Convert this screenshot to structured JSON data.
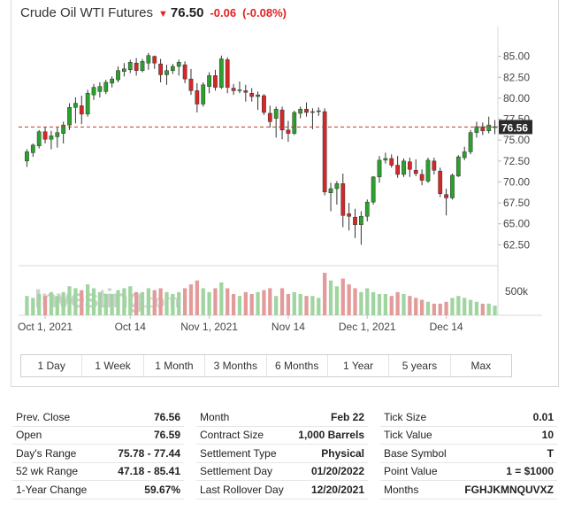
{
  "header": {
    "name": "Crude Oil WTI Futures",
    "price": "76.50",
    "change": "-0.06",
    "change_pct": "(-0.08%)"
  },
  "colors": {
    "up": "#2ca02c",
    "down": "#d62728",
    "vol_up": "#9fd59f",
    "vol_down": "#e39a9a",
    "current_line": "#c0392b"
  },
  "watermark": {
    "brand": "Investing",
    "suffix": ".com"
  },
  "chart_data": {
    "type": "candlestick",
    "title": "",
    "ylim": [
      60,
      87.5
    ],
    "y_ticks": [
      "85.00",
      "82.50",
      "80.00",
      "77.50",
      "75.00",
      "72.50",
      "70.00",
      "67.50",
      "65.00",
      "62.50"
    ],
    "x_ticks": [
      "Oct 1, 2021",
      "Oct 14",
      "Nov 1, 2021",
      "Nov 14",
      "Dec 1, 2021",
      "Dec 14"
    ],
    "current_label": "76.56",
    "current_value": 76.56,
    "volume_label": "500k",
    "candles": [
      [
        72.5,
        73.9,
        71.8,
        73.6
      ],
      [
        73.5,
        74.6,
        73.0,
        74.4
      ],
      [
        74.3,
        76.2,
        74.0,
        76.0
      ],
      [
        76.0,
        76.6,
        74.6,
        75.1
      ],
      [
        75.1,
        76.1,
        73.9,
        75.5
      ],
      [
        75.4,
        76.5,
        74.1,
        75.9
      ],
      [
        75.8,
        77.2,
        74.6,
        76.8
      ],
      [
        76.8,
        79.4,
        76.2,
        78.9
      ],
      [
        78.9,
        80.1,
        77.0,
        79.4
      ],
      [
        79.1,
        80.3,
        76.9,
        78.1
      ],
      [
        78.1,
        81.0,
        77.8,
        80.6
      ],
      [
        80.4,
        81.7,
        79.8,
        81.3
      ],
      [
        80.8,
        81.9,
        80.1,
        81.4
      ],
      [
        80.8,
        82.2,
        80.5,
        81.9
      ],
      [
        81.8,
        82.6,
        81.3,
        82.3
      ],
      [
        82.2,
        83.8,
        81.9,
        83.3
      ],
      [
        83.2,
        84.2,
        82.6,
        83.5
      ],
      [
        83.4,
        84.6,
        83.0,
        84.3
      ],
      [
        84.2,
        84.8,
        82.7,
        83.3
      ],
      [
        83.3,
        84.7,
        83.1,
        84.4
      ],
      [
        84.2,
        85.4,
        83.4,
        85.1
      ],
      [
        85.0,
        85.1,
        83.5,
        84.2
      ],
      [
        84.1,
        84.7,
        81.9,
        82.8
      ],
      [
        82.8,
        84.0,
        81.6,
        83.3
      ],
      [
        83.3,
        84.1,
        82.9,
        83.8
      ],
      [
        83.8,
        84.6,
        82.7,
        84.3
      ],
      [
        84.0,
        84.4,
        81.8,
        82.3
      ],
      [
        82.3,
        83.5,
        80.4,
        80.9
      ],
      [
        80.9,
        81.8,
        78.3,
        79.3
      ],
      [
        79.3,
        81.9,
        79.0,
        81.6
      ],
      [
        81.4,
        83.1,
        80.6,
        82.7
      ],
      [
        82.7,
        83.4,
        80.9,
        81.3
      ],
      [
        81.3,
        85.1,
        81.1,
        84.7
      ],
      [
        84.6,
        84.9,
        80.6,
        81.3
      ],
      [
        81.2,
        81.7,
        80.4,
        80.9
      ],
      [
        80.9,
        82.0,
        80.6,
        81.0
      ],
      [
        80.9,
        81.6,
        79.6,
        80.7
      ],
      [
        80.6,
        81.2,
        79.6,
        80.2
      ],
      [
        80.2,
        80.8,
        78.6,
        80.4
      ],
      [
        80.3,
        80.5,
        78.0,
        78.3
      ],
      [
        78.2,
        79.1,
        76.5,
        77.2
      ],
      [
        77.6,
        79.0,
        75.3,
        78.7
      ],
      [
        78.6,
        79.0,
        75.1,
        76.2
      ],
      [
        76.2,
        77.3,
        74.8,
        75.8
      ],
      [
        75.8,
        78.5,
        75.6,
        78.3
      ],
      [
        78.2,
        79.0,
        77.6,
        78.7
      ],
      [
        78.7,
        79.5,
        77.8,
        78.3
      ],
      [
        78.3,
        78.8,
        76.3,
        78.4
      ],
      [
        78.4,
        78.9,
        77.9,
        78.5
      ],
      [
        78.4,
        78.8,
        68.4,
        68.8
      ],
      [
        68.7,
        69.9,
        66.5,
        69.2
      ],
      [
        69.2,
        70.1,
        67.3,
        69.8
      ],
      [
        69.8,
        71.0,
        64.6,
        66.0
      ],
      [
        66.2,
        67.5,
        64.2,
        65.9
      ],
      [
        65.8,
        66.8,
        63.3,
        64.9
      ],
      [
        64.9,
        66.5,
        62.5,
        65.9
      ],
      [
        65.9,
        67.9,
        65.3,
        67.6
      ],
      [
        67.6,
        70.7,
        67.3,
        70.6
      ],
      [
        70.6,
        73.1,
        69.9,
        72.6
      ],
      [
        72.6,
        73.5,
        72.2,
        72.8
      ],
      [
        72.8,
        73.3,
        71.7,
        72.0
      ],
      [
        72.0,
        73.1,
        70.5,
        70.9
      ],
      [
        70.9,
        72.8,
        70.6,
        72.5
      ],
      [
        72.4,
        72.9,
        70.6,
        71.5
      ],
      [
        71.4,
        72.7,
        70.7,
        71.0
      ],
      [
        70.9,
        71.5,
        69.6,
        70.2
      ],
      [
        70.1,
        72.9,
        69.9,
        72.6
      ],
      [
        72.5,
        72.9,
        70.9,
        71.4
      ],
      [
        71.3,
        71.7,
        68.2,
        68.6
      ],
      [
        68.5,
        69.2,
        66.0,
        68.1
      ],
      [
        68.1,
        71.0,
        67.9,
        70.8
      ],
      [
        70.7,
        73.2,
        70.6,
        73.0
      ],
      [
        72.9,
        74.2,
        72.6,
        73.6
      ],
      [
        73.6,
        76.2,
        73.3,
        75.9
      ],
      [
        75.9,
        77.2,
        75.3,
        76.6
      ],
      [
        76.6,
        77.1,
        75.6,
        76.1
      ],
      [
        76.1,
        77.8,
        75.8,
        76.8
      ],
      [
        76.5,
        77.4,
        75.7,
        76.6
      ]
    ],
    "volume": [
      0.5,
      0.45,
      0.55,
      0.5,
      0.6,
      0.5,
      0.6,
      0.75,
      0.7,
      0.65,
      0.8,
      0.7,
      0.6,
      0.55,
      0.55,
      0.65,
      0.7,
      0.75,
      0.6,
      0.6,
      0.7,
      0.65,
      0.7,
      0.6,
      0.55,
      0.6,
      0.7,
      0.8,
      0.9,
      0.7,
      0.6,
      0.7,
      0.85,
      0.7,
      0.55,
      0.5,
      0.6,
      0.55,
      0.6,
      0.65,
      0.7,
      0.5,
      0.7,
      0.55,
      0.6,
      0.55,
      0.5,
      0.5,
      0.45,
      1.1,
      0.9,
      0.75,
      0.95,
      0.8,
      0.7,
      0.6,
      0.7,
      0.6,
      0.55,
      0.55,
      0.5,
      0.6,
      0.55,
      0.5,
      0.45,
      0.4,
      0.35,
      0.3,
      0.3,
      0.35,
      0.45,
      0.5,
      0.45,
      0.4,
      0.35,
      0.3,
      0.3,
      0.25
    ]
  },
  "ranges": [
    "1 Day",
    "1 Week",
    "1 Month",
    "3 Months",
    "6 Months",
    "1 Year",
    "5 years",
    "Max"
  ],
  "stats": {
    "col1": [
      {
        "label": "Prev. Close",
        "value": "76.56"
      },
      {
        "label": "Open",
        "value": "76.59"
      },
      {
        "label": "Day's Range",
        "value": "75.78 - 77.44"
      },
      {
        "label": "52 wk Range",
        "value": "47.18 - 85.41"
      },
      {
        "label": "1-Year Change",
        "value": "59.67%"
      }
    ],
    "col2": [
      {
        "label": "Month",
        "value": "Feb 22"
      },
      {
        "label": "Contract Size",
        "value": "1,000 Barrels"
      },
      {
        "label": "Settlement Type",
        "value": "Physical"
      },
      {
        "label": "Settlement Day",
        "value": "01/20/2022"
      },
      {
        "label": "Last Rollover Day",
        "value": "12/20/2021"
      }
    ],
    "col3": [
      {
        "label": "Tick Size",
        "value": "0.01"
      },
      {
        "label": "Tick Value",
        "value": "10"
      },
      {
        "label": "Base Symbol",
        "value": "T"
      },
      {
        "label": "Point Value",
        "value": "1 = $1000"
      },
      {
        "label": "Months",
        "value": "FGHJKMNQUVXZ"
      }
    ]
  }
}
